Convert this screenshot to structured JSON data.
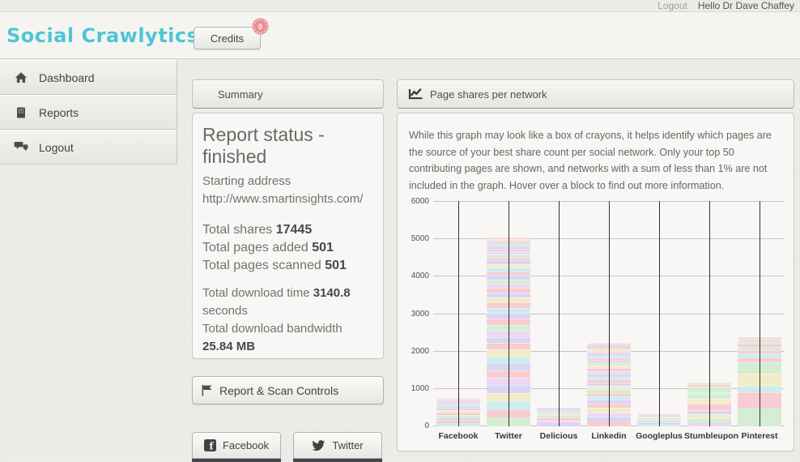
{
  "topbar": {
    "logout_label": "Logout",
    "greeting": "Hello Dr Dave Chaffey"
  },
  "header": {
    "brand": "Social Crawlytics",
    "brand_color": "#4ec5d6",
    "credits_label": "Credits",
    "credits_badge": "0",
    "badge_color": "#e89090"
  },
  "sidebar": {
    "items": [
      {
        "label": "Dashboard",
        "icon": "home-icon"
      },
      {
        "label": "Reports",
        "icon": "book-icon"
      },
      {
        "label": "Logout",
        "icon": "comments-icon"
      }
    ]
  },
  "summary": {
    "panel_title": "Summary",
    "status_heading": "Report status - finished",
    "starting_address_label": "Starting address",
    "starting_address": "http://www.smartinsights.com/",
    "stats": [
      {
        "label": "Total shares",
        "value": "17445"
      },
      {
        "label": "Total pages added",
        "value": "501"
      },
      {
        "label": "Total pages scanned",
        "value": "501"
      }
    ],
    "downloads": [
      {
        "label": "Total download time",
        "value": "3140.8",
        "suffix": "seconds"
      },
      {
        "label": "Total download bandwidth",
        "value": "25.84 MB",
        "suffix": ""
      }
    ]
  },
  "controls": {
    "report_scan_label": "Report & Scan Controls"
  },
  "social": {
    "facebook_label": "Facebook",
    "twitter_label": "Twitter"
  },
  "chart_panel": {
    "title": "Page shares per network",
    "description": "While this graph may look like a box of crayons, it helps identify which pages are the source of your best share count per social network. Only your top 50 contributing pages are shown, and networks with a sum of less than 1% are not included in the graph. Hover over a block to find out more information."
  },
  "chart_data": {
    "type": "bar",
    "stacked": true,
    "title": "Page shares per network",
    "categories": [
      "Facebook",
      "Twitter",
      "Delicious",
      "Linkedin",
      "Googleplus",
      "Stumbleupon",
      "Pinterest"
    ],
    "totals": [
      760,
      5060,
      510,
      2240,
      350,
      1170,
      2375
    ],
    "ylim": [
      0,
      6000
    ],
    "yticks": [
      0,
      1000,
      2000,
      3000,
      4000,
      5000,
      6000
    ],
    "grid": true,
    "legend": "none",
    "palette": [
      "#d5edd2",
      "#f7cdd2",
      "#d9d6f2",
      "#f3ebc8",
      "#cdecee",
      "#edd7f3"
    ],
    "bars": [
      {
        "category": "Facebook",
        "segments": [
          [
            90,
            4
          ],
          [
            80,
            1
          ],
          [
            70,
            2
          ],
          [
            65,
            0
          ],
          [
            65,
            1
          ],
          [
            60,
            3
          ],
          [
            60,
            2
          ],
          [
            55,
            1
          ],
          [
            55,
            4
          ],
          [
            50,
            2
          ],
          [
            45,
            1
          ],
          [
            40,
            5
          ],
          [
            25,
            1
          ]
        ]
      },
      {
        "category": "Twitter",
        "segments": [
          [
            230,
            0
          ],
          [
            225,
            1
          ],
          [
            220,
            4
          ],
          [
            215,
            3
          ],
          [
            210,
            2
          ],
          [
            200,
            5
          ],
          [
            195,
            1
          ],
          [
            190,
            2
          ],
          [
            185,
            4
          ],
          [
            180,
            3
          ],
          [
            175,
            1
          ],
          [
            170,
            2
          ],
          [
            165,
            5
          ],
          [
            160,
            0
          ],
          [
            155,
            1
          ],
          [
            150,
            2
          ],
          [
            145,
            4
          ],
          [
            140,
            1
          ],
          [
            135,
            3
          ],
          [
            130,
            2
          ],
          [
            125,
            1
          ],
          [
            120,
            5
          ],
          [
            115,
            0
          ],
          [
            110,
            2
          ],
          [
            105,
            1
          ],
          [
            100,
            4
          ],
          [
            95,
            3
          ],
          [
            90,
            2
          ],
          [
            85,
            1
          ],
          [
            80,
            0
          ],
          [
            75,
            5
          ],
          [
            70,
            2
          ],
          [
            65,
            1
          ],
          [
            60,
            4
          ],
          [
            55,
            2
          ],
          [
            50,
            1
          ],
          [
            45,
            3
          ],
          [
            40,
            1
          ]
        ]
      },
      {
        "category": "Delicious",
        "segments": [
          [
            85,
            2
          ],
          [
            75,
            5
          ],
          [
            70,
            1
          ],
          [
            65,
            0
          ],
          [
            60,
            3
          ],
          [
            55,
            4
          ],
          [
            50,
            1
          ],
          [
            50,
            2
          ]
        ]
      },
      {
        "category": "Linkedin",
        "segments": [
          [
            130,
            1
          ],
          [
            125,
            2
          ],
          [
            120,
            5
          ],
          [
            115,
            3
          ],
          [
            110,
            1
          ],
          [
            105,
            2
          ],
          [
            100,
            4
          ],
          [
            95,
            1
          ],
          [
            90,
            0
          ],
          [
            90,
            3
          ],
          [
            85,
            2
          ],
          [
            85,
            1
          ],
          [
            80,
            4
          ],
          [
            80,
            2
          ],
          [
            75,
            5
          ],
          [
            75,
            1
          ],
          [
            70,
            3
          ],
          [
            70,
            0
          ],
          [
            65,
            2
          ],
          [
            65,
            1
          ],
          [
            60,
            4
          ],
          [
            60,
            2
          ],
          [
            55,
            1
          ],
          [
            55,
            3
          ],
          [
            50,
            2
          ],
          [
            50,
            1
          ],
          [
            45,
            2
          ],
          [
            35,
            1
          ]
        ]
      },
      {
        "category": "Googleplus",
        "segments": [
          [
            55,
            4
          ],
          [
            50,
            2
          ],
          [
            45,
            1
          ],
          [
            45,
            0
          ],
          [
            40,
            4
          ],
          [
            35,
            3
          ],
          [
            30,
            1
          ],
          [
            25,
            2
          ],
          [
            25,
            0
          ]
        ]
      },
      {
        "category": "Stumbleupon",
        "segments": [
          [
            95,
            5
          ],
          [
            120,
            0
          ],
          [
            115,
            3
          ],
          [
            115,
            2
          ],
          [
            155,
            1
          ],
          [
            140,
            3
          ],
          [
            135,
            0
          ],
          [
            45,
            4
          ],
          [
            150,
            0
          ],
          [
            50,
            1
          ],
          [
            50,
            0
          ]
        ]
      },
      {
        "category": "Pinterest",
        "segments": [
          [
            480,
            0
          ],
          [
            430,
            1
          ],
          [
            170,
            4
          ],
          [
            330,
            3
          ],
          [
            270,
            0
          ],
          [
            45,
            2
          ],
          [
            125,
            1
          ],
          [
            100,
            4
          ],
          [
            95,
            1
          ],
          [
            85,
            0
          ],
          [
            75,
            1
          ],
          [
            40,
            4
          ],
          [
            60,
            1
          ],
          [
            35,
            0
          ],
          [
            35,
            1
          ]
        ]
      }
    ]
  }
}
